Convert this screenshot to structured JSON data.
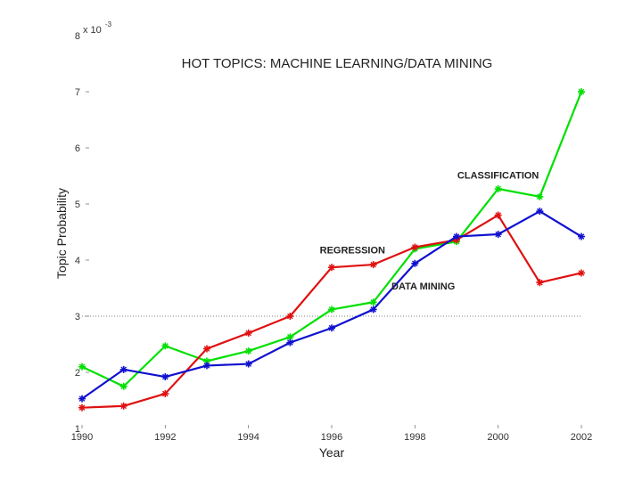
{
  "chart_data": {
    "type": "line",
    "title": "HOT TOPICS: MACHINE LEARNING/DATA MINING",
    "xlabel": "Year",
    "ylabel": "Topic Probability",
    "y_multiplier": "x 10",
    "y_multiplier_exponent": "-3",
    "xlim": [
      1990,
      2002
    ],
    "ylim": [
      1,
      8
    ],
    "x_ticks": [
      1990,
      1992,
      1994,
      1996,
      1998,
      2000,
      2002
    ],
    "x_tick_labels": [
      "1990",
      "1992",
      "1994",
      "1996",
      "1998",
      "2000",
      "2002"
    ],
    "y_ticks": [
      1,
      2,
      3,
      4,
      5,
      6,
      7,
      8
    ],
    "y_tick_labels": [
      "1",
      "2",
      "3",
      "4",
      "5",
      "6",
      "7",
      "8"
    ],
    "reference_line": {
      "y": 3,
      "style": "dotted"
    },
    "x": [
      1990,
      1991,
      1992,
      1993,
      1994,
      1995,
      1996,
      1997,
      1998,
      1999,
      2000,
      2001,
      2002
    ],
    "series": [
      {
        "color": "#00e000",
        "values": [
          2.1,
          1.75,
          2.47,
          2.2,
          2.38,
          2.63,
          3.12,
          3.25,
          4.2,
          4.33,
          5.27,
          5.13,
          7.0
        ]
      },
      {
        "color": "#e01010",
        "values": [
          1.37,
          1.4,
          1.62,
          2.42,
          2.7,
          3.0,
          3.87,
          3.92,
          4.23,
          4.36,
          4.8,
          3.6,
          3.77
        ]
      },
      {
        "color": "#1010d0",
        "values": [
          1.53,
          2.05,
          1.92,
          2.12,
          2.15,
          2.53,
          2.79,
          3.12,
          3.94,
          4.42,
          4.46,
          4.87,
          4.42
        ]
      }
    ],
    "annotations": [
      {
        "text": "CLASSIFICATION",
        "x": 2000,
        "y": 5.45
      },
      {
        "text": "REGRESSION",
        "x": 1996.5,
        "y": 4.12
      },
      {
        "text": "DATA MINING",
        "x": 1998.2,
        "y": 3.48
      }
    ]
  }
}
